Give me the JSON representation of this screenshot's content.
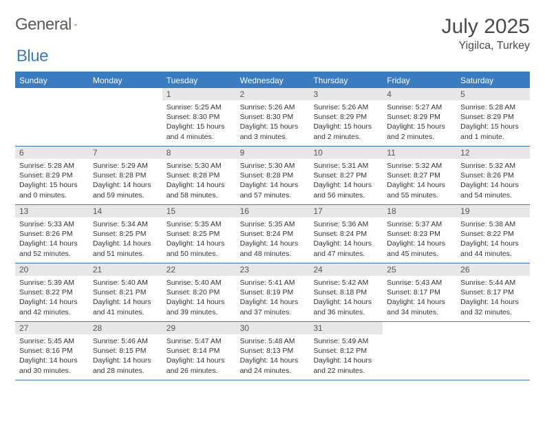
{
  "logo": {
    "text1": "General",
    "text2": "Blue"
  },
  "header": {
    "month": "July 2025",
    "location": "Yigilca, Turkey"
  },
  "colors": {
    "accent": "#3b7bbf",
    "dayHeaderBg": "#e7e7e7",
    "text": "#333333",
    "headerText": "#4a4a4a",
    "logoGray": "#5a5a5a"
  },
  "weekdays": [
    "Sunday",
    "Monday",
    "Tuesday",
    "Wednesday",
    "Thursday",
    "Friday",
    "Saturday"
  ],
  "weeks": [
    [
      null,
      null,
      {
        "n": "1",
        "sr": "5:25 AM",
        "ss": "8:30 PM",
        "dl": "15 hours and 4 minutes."
      },
      {
        "n": "2",
        "sr": "5:26 AM",
        "ss": "8:30 PM",
        "dl": "15 hours and 3 minutes."
      },
      {
        "n": "3",
        "sr": "5:26 AM",
        "ss": "8:29 PM",
        "dl": "15 hours and 2 minutes."
      },
      {
        "n": "4",
        "sr": "5:27 AM",
        "ss": "8:29 PM",
        "dl": "15 hours and 2 minutes."
      },
      {
        "n": "5",
        "sr": "5:28 AM",
        "ss": "8:29 PM",
        "dl": "15 hours and 1 minute."
      }
    ],
    [
      {
        "n": "6",
        "sr": "5:28 AM",
        "ss": "8:29 PM",
        "dl": "15 hours and 0 minutes."
      },
      {
        "n": "7",
        "sr": "5:29 AM",
        "ss": "8:28 PM",
        "dl": "14 hours and 59 minutes."
      },
      {
        "n": "8",
        "sr": "5:30 AM",
        "ss": "8:28 PM",
        "dl": "14 hours and 58 minutes."
      },
      {
        "n": "9",
        "sr": "5:30 AM",
        "ss": "8:28 PM",
        "dl": "14 hours and 57 minutes."
      },
      {
        "n": "10",
        "sr": "5:31 AM",
        "ss": "8:27 PM",
        "dl": "14 hours and 56 minutes."
      },
      {
        "n": "11",
        "sr": "5:32 AM",
        "ss": "8:27 PM",
        "dl": "14 hours and 55 minutes."
      },
      {
        "n": "12",
        "sr": "5:32 AM",
        "ss": "8:26 PM",
        "dl": "14 hours and 54 minutes."
      }
    ],
    [
      {
        "n": "13",
        "sr": "5:33 AM",
        "ss": "8:26 PM",
        "dl": "14 hours and 52 minutes."
      },
      {
        "n": "14",
        "sr": "5:34 AM",
        "ss": "8:25 PM",
        "dl": "14 hours and 51 minutes."
      },
      {
        "n": "15",
        "sr": "5:35 AM",
        "ss": "8:25 PM",
        "dl": "14 hours and 50 minutes."
      },
      {
        "n": "16",
        "sr": "5:35 AM",
        "ss": "8:24 PM",
        "dl": "14 hours and 48 minutes."
      },
      {
        "n": "17",
        "sr": "5:36 AM",
        "ss": "8:24 PM",
        "dl": "14 hours and 47 minutes."
      },
      {
        "n": "18",
        "sr": "5:37 AM",
        "ss": "8:23 PM",
        "dl": "14 hours and 45 minutes."
      },
      {
        "n": "19",
        "sr": "5:38 AM",
        "ss": "8:22 PM",
        "dl": "14 hours and 44 minutes."
      }
    ],
    [
      {
        "n": "20",
        "sr": "5:39 AM",
        "ss": "8:22 PM",
        "dl": "14 hours and 42 minutes."
      },
      {
        "n": "21",
        "sr": "5:40 AM",
        "ss": "8:21 PM",
        "dl": "14 hours and 41 minutes."
      },
      {
        "n": "22",
        "sr": "5:40 AM",
        "ss": "8:20 PM",
        "dl": "14 hours and 39 minutes."
      },
      {
        "n": "23",
        "sr": "5:41 AM",
        "ss": "8:19 PM",
        "dl": "14 hours and 37 minutes."
      },
      {
        "n": "24",
        "sr": "5:42 AM",
        "ss": "8:18 PM",
        "dl": "14 hours and 36 minutes."
      },
      {
        "n": "25",
        "sr": "5:43 AM",
        "ss": "8:17 PM",
        "dl": "14 hours and 34 minutes."
      },
      {
        "n": "26",
        "sr": "5:44 AM",
        "ss": "8:17 PM",
        "dl": "14 hours and 32 minutes."
      }
    ],
    [
      {
        "n": "27",
        "sr": "5:45 AM",
        "ss": "8:16 PM",
        "dl": "14 hours and 30 minutes."
      },
      {
        "n": "28",
        "sr": "5:46 AM",
        "ss": "8:15 PM",
        "dl": "14 hours and 28 minutes."
      },
      {
        "n": "29",
        "sr": "5:47 AM",
        "ss": "8:14 PM",
        "dl": "14 hours and 26 minutes."
      },
      {
        "n": "30",
        "sr": "5:48 AM",
        "ss": "8:13 PM",
        "dl": "14 hours and 24 minutes."
      },
      {
        "n": "31",
        "sr": "5:49 AM",
        "ss": "8:12 PM",
        "dl": "14 hours and 22 minutes."
      },
      null,
      null
    ]
  ],
  "labels": {
    "sunrise": "Sunrise:",
    "sunset": "Sunset:",
    "daylight": "Daylight:"
  }
}
